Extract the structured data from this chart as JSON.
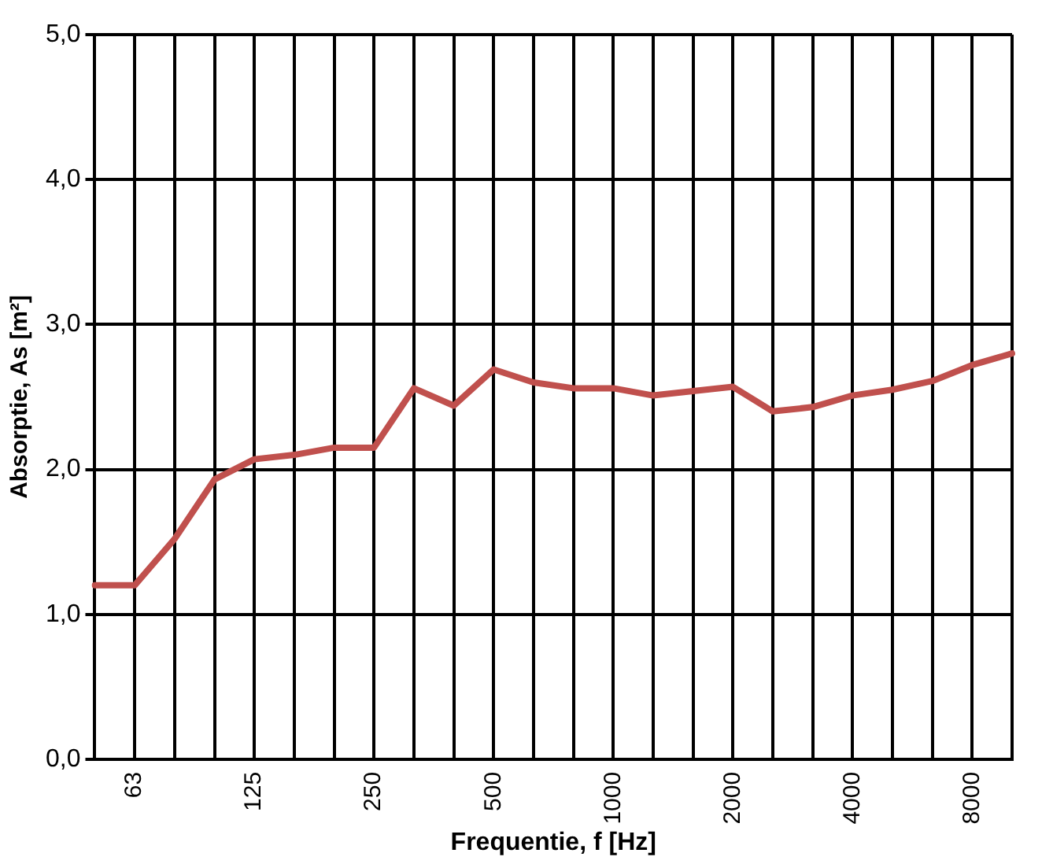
{
  "chart_data": {
    "type": "line",
    "xlabel": "Frequentie, f [Hz]",
    "ylabel": "Absorptie, As [m²]",
    "categories": [
      null,
      "63",
      null,
      null,
      "125",
      null,
      null,
      "250",
      null,
      null,
      "500",
      null,
      null,
      "1000",
      null,
      null,
      "2000",
      null,
      null,
      "4000",
      null,
      null,
      "8000",
      null
    ],
    "series": [
      {
        "color": "#c0504d",
        "values": [
          1.2,
          1.2,
          1.52,
          1.93,
          2.07,
          2.1,
          2.15,
          2.15,
          2.56,
          2.44,
          2.69,
          2.6,
          2.56,
          2.56,
          2.51,
          2.54,
          2.57,
          2.4,
          2.43,
          2.51,
          2.55,
          2.61,
          2.72,
          2.8
        ]
      }
    ],
    "ylim": [
      0,
      5
    ],
    "yticks": [
      {
        "value": 0,
        "label": "0,0"
      },
      {
        "value": 1,
        "label": "1,0"
      },
      {
        "value": 2,
        "label": "2,0"
      },
      {
        "value": 3,
        "label": "3,0"
      },
      {
        "value": 4,
        "label": "4,0"
      },
      {
        "value": 5,
        "label": "5,0"
      }
    ],
    "grid": true,
    "legend": false,
    "marker": "none",
    "line_style": "solid"
  }
}
